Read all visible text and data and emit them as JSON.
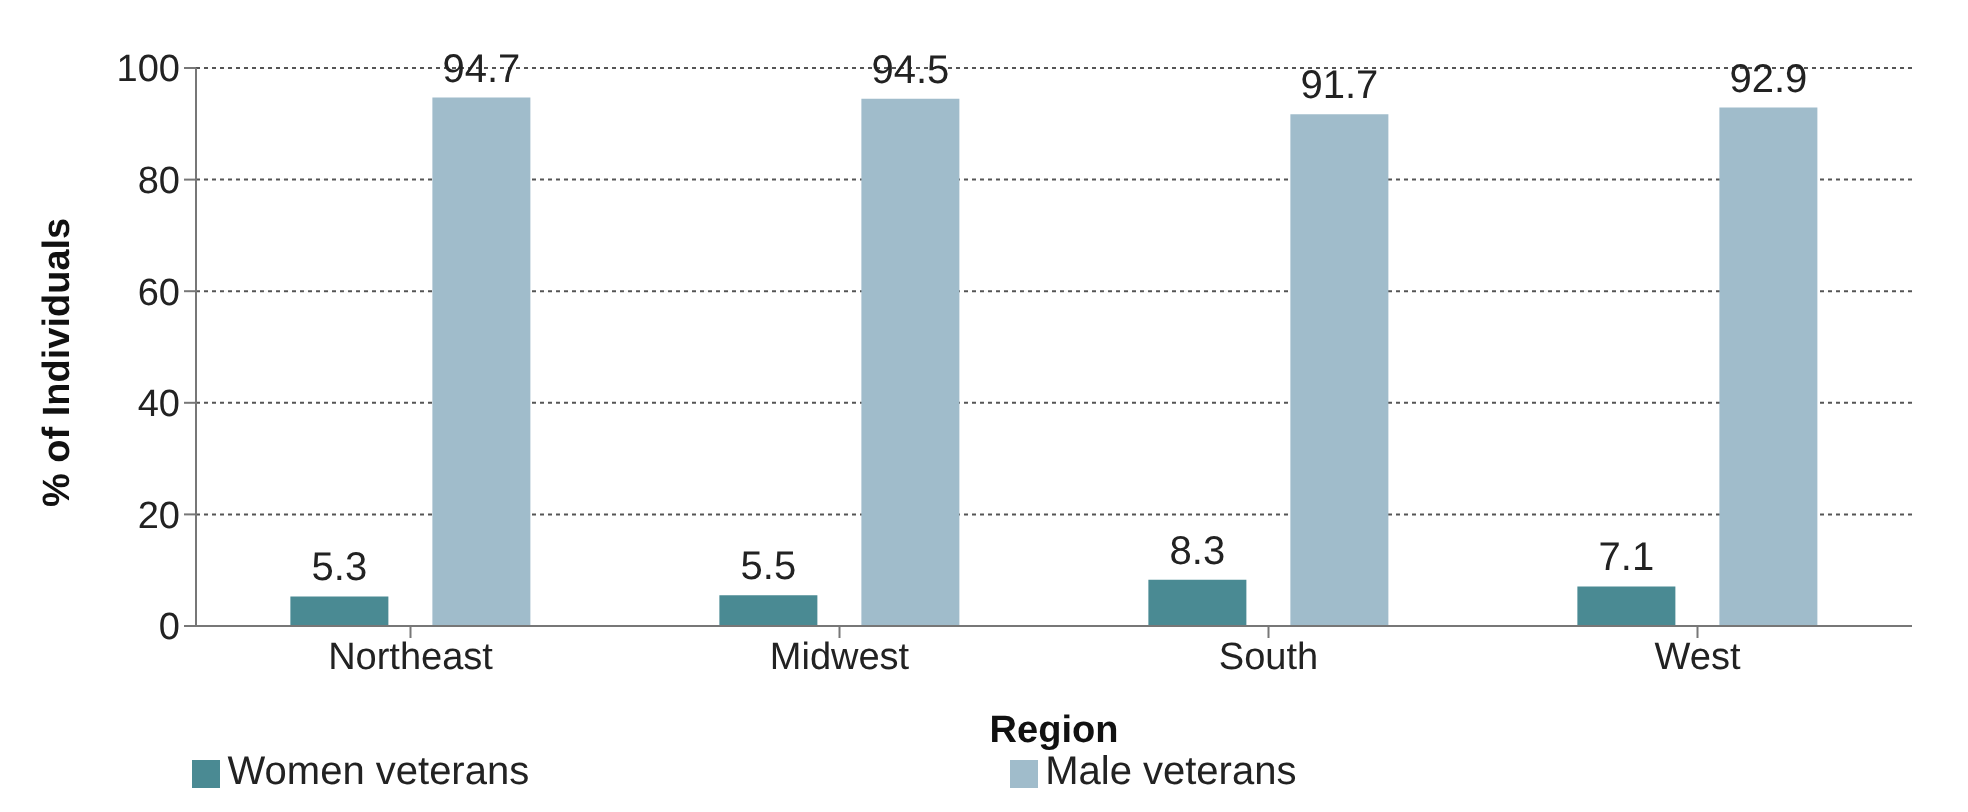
{
  "chart_data": {
    "type": "bar",
    "xlabel": "Region",
    "ylabel": "% of Individuals",
    "categories": [
      "Northeast",
      "Midwest",
      "South",
      "West"
    ],
    "series": [
      {
        "name": "Women veterans",
        "color": "#4a8a93",
        "values": [
          5.3,
          5.5,
          8.3,
          7.1
        ]
      },
      {
        "name": "Male veterans",
        "color": "#a0bccb",
        "values": [
          94.7,
          94.5,
          91.7,
          92.9
        ]
      }
    ],
    "ylim": [
      0,
      100
    ],
    "yticks": [
      0,
      20,
      40,
      60,
      80,
      100
    ],
    "grid": "y",
    "legend": "bottom",
    "data_labels": true
  }
}
